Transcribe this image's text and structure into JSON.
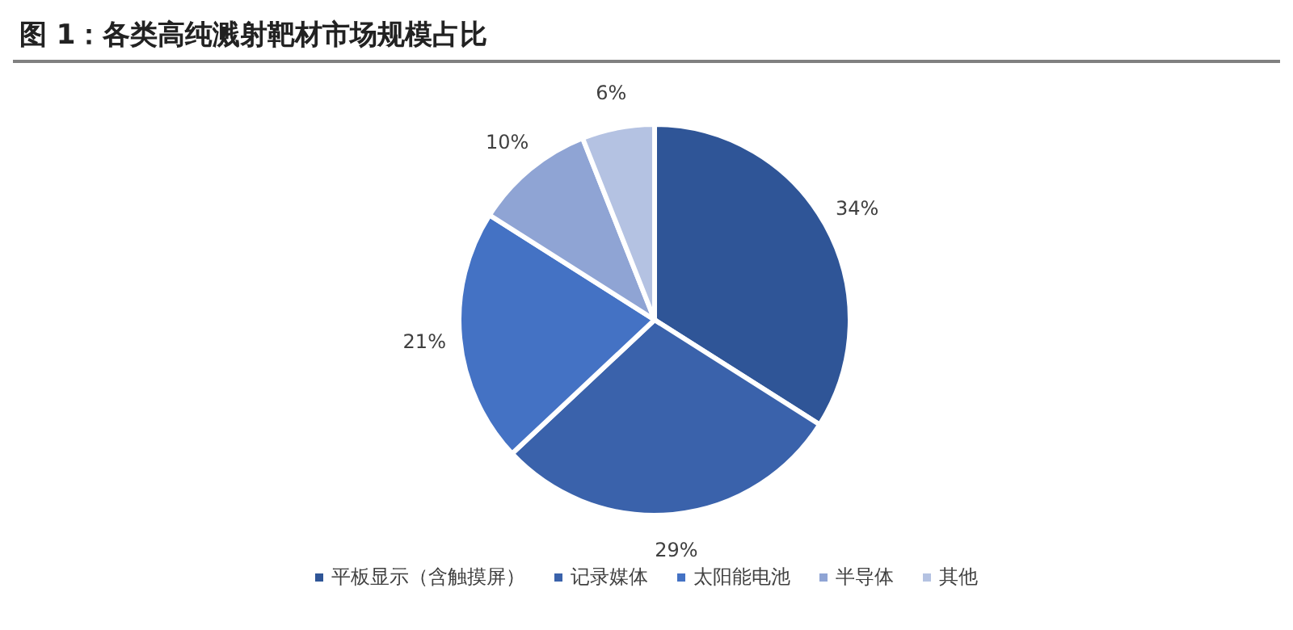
{
  "chart_data": {
    "type": "pie",
    "title": "图 1：各类高纯溅射靶材市场规模占比",
    "categories": [
      "平板显示（含触摸屏）",
      "记录媒体",
      "太阳能电池",
      "半导体",
      "其他"
    ],
    "values": [
      34,
      29,
      21,
      10,
      6
    ],
    "value_labels": [
      "34%",
      "29%",
      "21%",
      "10%",
      "6%"
    ],
    "colors": [
      "#2f5597",
      "#3a62ab",
      "#4472c4",
      "#8fa4d4",
      "#b4c2e2"
    ],
    "legend": "bottom"
  }
}
